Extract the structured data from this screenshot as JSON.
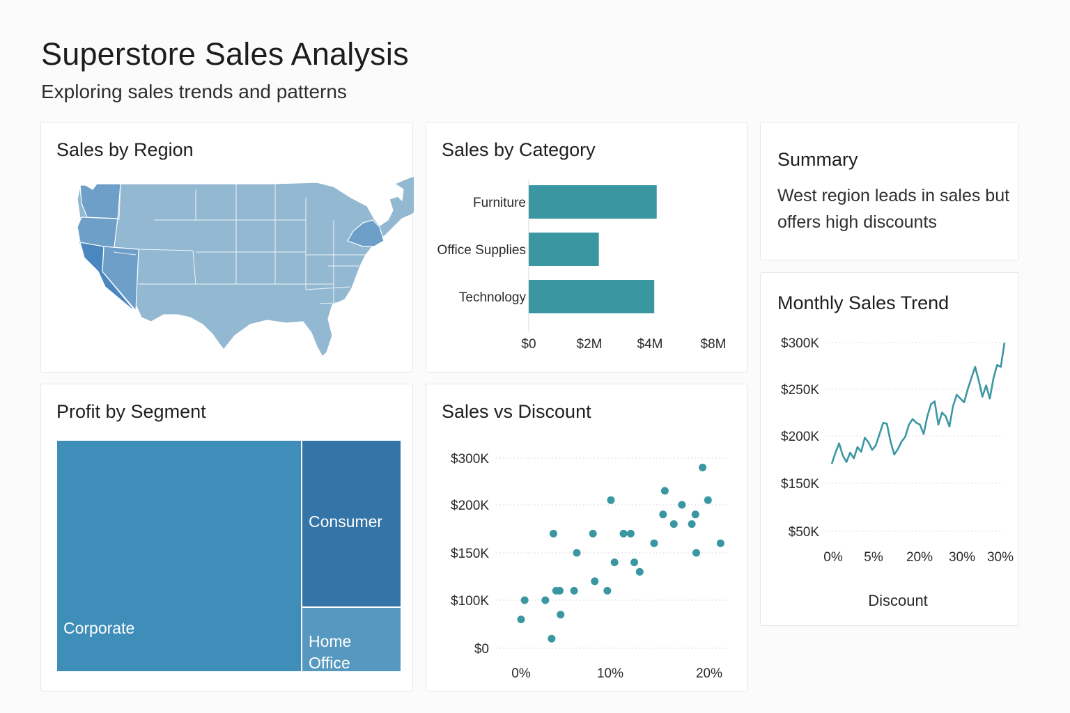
{
  "header": {
    "title": "Superstore Sales Analysis",
    "subtitle": "Exploring sales trends and patterns"
  },
  "colors": {
    "teal": "#3a97a1",
    "map_light": "#93b8d1",
    "map_mid": "#6d9fc8",
    "map_dark": "#4a86bf",
    "corporate": "#3f8eb9",
    "consumer": "#3474a6",
    "home_office": "#5698bf"
  },
  "region_map": {
    "title": "Sales by Region"
  },
  "summary": {
    "title": "Summary",
    "text": "West region leads in sales but offers high discounts"
  },
  "chart_data": [
    {
      "type": "bar",
      "title": "Sales by Category",
      "orientation": "horizontal",
      "categories": [
        "Furniture",
        "Office Supplies",
        "Technology"
      ],
      "values": [
        5.2,
        2.85,
        5.1
      ],
      "xticks": [
        "$0",
        "$2M",
        "$4M",
        "$8M"
      ],
      "xlim": [
        0,
        7.5
      ],
      "grid": false
    },
    {
      "type": "treemap",
      "title": "Profit by Segment",
      "segments": [
        {
          "name": "Corporate",
          "share": 0.71
        },
        {
          "name": "Consumer",
          "share": 0.19
        },
        {
          "name": "Home Office",
          "name_lines": [
            "Home",
            "Office"
          ],
          "share": 0.1
        }
      ]
    },
    {
      "type": "scatter",
      "title": "Sales vs Discount",
      "xticks": [
        "0%",
        "10%",
        "20%"
      ],
      "yticks": [
        "$300K",
        "$200K",
        "$150K",
        "$100K",
        "$0"
      ],
      "grid": true,
      "points": [
        [
          0.0,
          0.6
        ],
        [
          0.4,
          1.0
        ],
        [
          2.7,
          1.0
        ],
        [
          3.4,
          0.2
        ],
        [
          4.4,
          0.7
        ],
        [
          3.9,
          1.1
        ],
        [
          4.3,
          1.1
        ],
        [
          5.9,
          1.1
        ],
        [
          3.6,
          1.7
        ],
        [
          6.2,
          1.5
        ],
        [
          8.0,
          1.7
        ],
        [
          8.2,
          1.2
        ],
        [
          10.0,
          2.1
        ],
        [
          9.6,
          1.1
        ],
        [
          10.4,
          1.4
        ],
        [
          11.4,
          1.7
        ],
        [
          12.2,
          1.7
        ],
        [
          12.6,
          1.4
        ],
        [
          13.2,
          1.3
        ],
        [
          14.8,
          1.6
        ],
        [
          15.8,
          1.9
        ],
        [
          17.0,
          1.8
        ],
        [
          19.0,
          1.8
        ],
        [
          19.5,
          1.5
        ],
        [
          17.9,
          2.0
        ],
        [
          19.4,
          1.9
        ],
        [
          20.8,
          2.1
        ],
        [
          16.0,
          2.3
        ],
        [
          20.2,
          2.8
        ],
        [
          22.2,
          1.6
        ]
      ]
    },
    {
      "type": "line",
      "title": "Monthly Sales Trend",
      "xlabel": "Discount",
      "xticks": [
        "0%",
        "5%",
        "20%",
        "30%",
        "30%"
      ],
      "yticks": [
        "$300K",
        "$250K",
        "$200K",
        "$150K",
        "$50K"
      ],
      "grid": true,
      "values": [
        170,
        182,
        192,
        179,
        172,
        182,
        176,
        188,
        183,
        198,
        193,
        185,
        190,
        202,
        214,
        213,
        194,
        180,
        186,
        194,
        199,
        212,
        218,
        214,
        212,
        202,
        221,
        234,
        237,
        212,
        225,
        221,
        210,
        232,
        244,
        240,
        236,
        250,
        262,
        274,
        259,
        242,
        254,
        240,
        262,
        276,
        274,
        300
      ]
    }
  ]
}
